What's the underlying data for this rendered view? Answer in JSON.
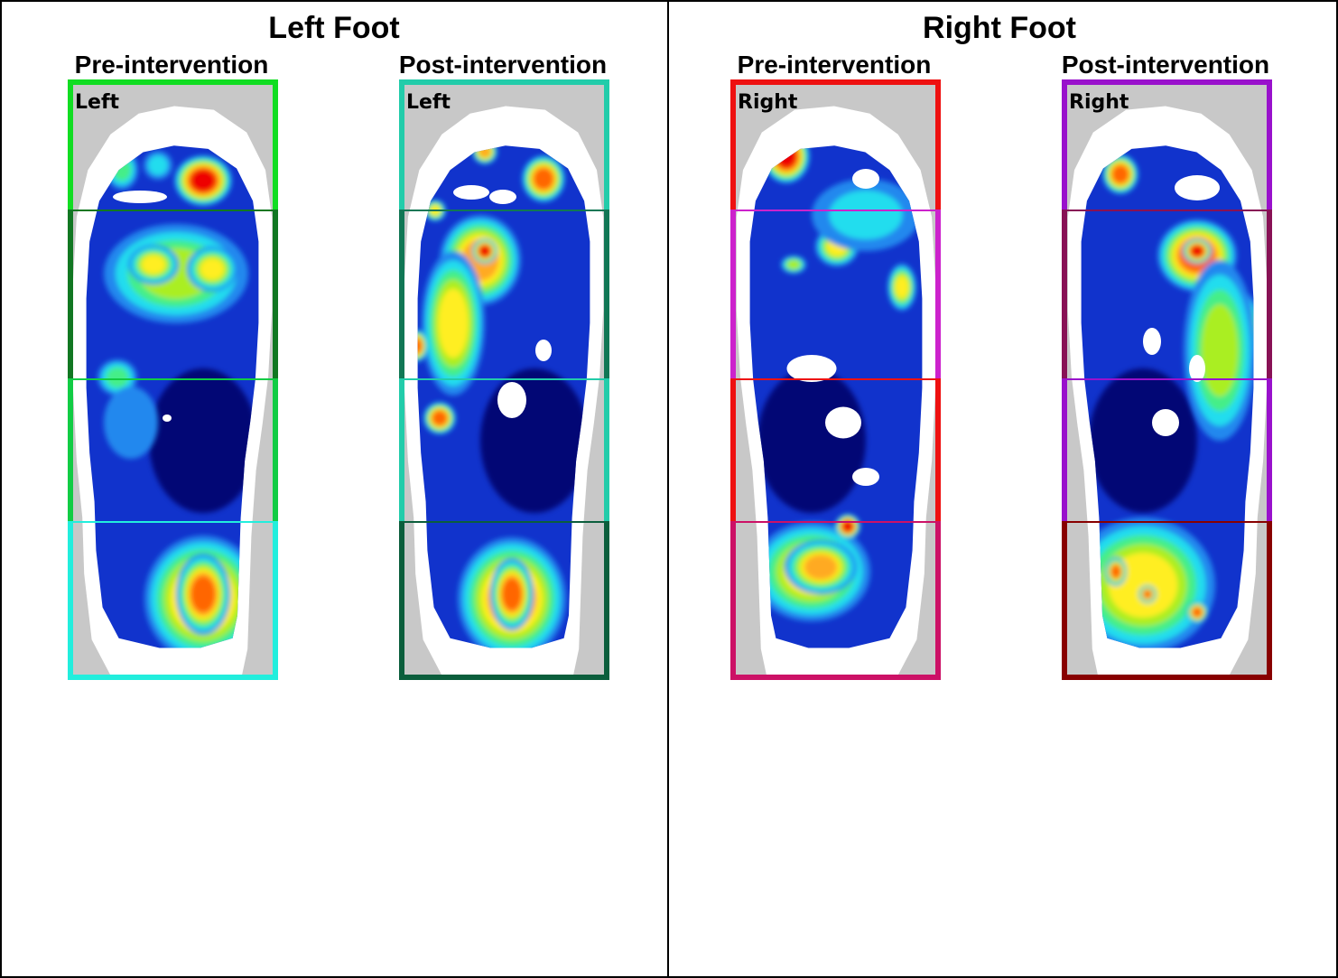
{
  "left": {
    "title": "Left Foot",
    "pre_label": "Pre-intervention",
    "post_label": "Post-intervention",
    "map_label": "Left"
  },
  "right": {
    "title": "Right Foot",
    "pre_label": "Pre-intervention",
    "post_label": "Post-intervention",
    "map_label": "Right"
  },
  "colors": {
    "left_pre_frame": [
      "#11dd22",
      "#117722",
      "#11cc44",
      "#22eedd"
    ],
    "left_post_frame": [
      "#22ccaa",
      "#117755",
      "#22ccaa",
      "#0b5e3c"
    ],
    "right_pre_frame": [
      "#ee1111",
      "#cc22cc",
      "#ee1111",
      "#cc1166"
    ],
    "right_post_frame": [
      "#9911cc",
      "#881155",
      "#9911cc",
      "#880000"
    ],
    "pressure_scale": [
      "#000066",
      "#1133cc",
      "#2288ee",
      "#22ddee",
      "#44ee88",
      "#aaee22",
      "#ffee22",
      "#ffaa22",
      "#ff6600",
      "#ee0000"
    ]
  }
}
